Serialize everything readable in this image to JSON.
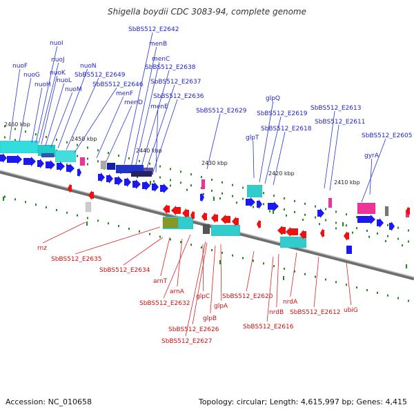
{
  "title": "Shigella boydii CDC 3083-94, complete genome",
  "footer": {
    "accession": "Accession: NC_010658",
    "summary": "Topology: circular; Length: 4,615,997 bp; Genes: 4,415"
  },
  "colors": {
    "forward_label": "#2222cc",
    "reverse_label": "#cc1111",
    "forward_gene": "#1a1aee",
    "reverse_gene": "#ee1111",
    "backbone": "#888888",
    "cyan_box": "#33cccc",
    "magenta_box": "#ee3399",
    "tick": "#1a8a1a"
  },
  "kbp_labels": [
    "2460 kbp",
    "2450 kbp",
    "2440 kbp",
    "2430 kbp",
    "2420 kbp",
    "2410 kbp"
  ],
  "forward_labels": [
    "nuoF",
    "nuoG",
    "nuoH",
    "nuoI",
    "nuoJ",
    "nuoK",
    "nuoL",
    "nuoM",
    "nuoN",
    "SbBS512_E2649",
    "SbBS512_E2646",
    "menF",
    "menD",
    "SbBS512_E2642",
    "menB",
    "menC",
    "SbBS512_E2638",
    "SbBS512_E2637",
    "SbBS512_E2636",
    "menE",
    "SbBS512_E2629",
    "glpT",
    "glpQ",
    "SbBS512_E2619",
    "SbBS512_E2618",
    "SbBS512_E2613",
    "SbBS512_E2611",
    "SbBS512_E2605",
    "gyrA"
  ],
  "reverse_labels": [
    "rnz",
    "SbBS512_E2635",
    "SbBS512_E2634",
    "arnT",
    "arnA",
    "SbBS512_E2632",
    "glpC",
    "glpA",
    "glpB",
    "SbBS512_E2626",
    "SbBS512_E2627",
    "SbBS512_E2620",
    "SbBS512_E2616",
    "nrdB",
    "nrdA",
    "SbBS512_E2612",
    "ubiG"
  ]
}
